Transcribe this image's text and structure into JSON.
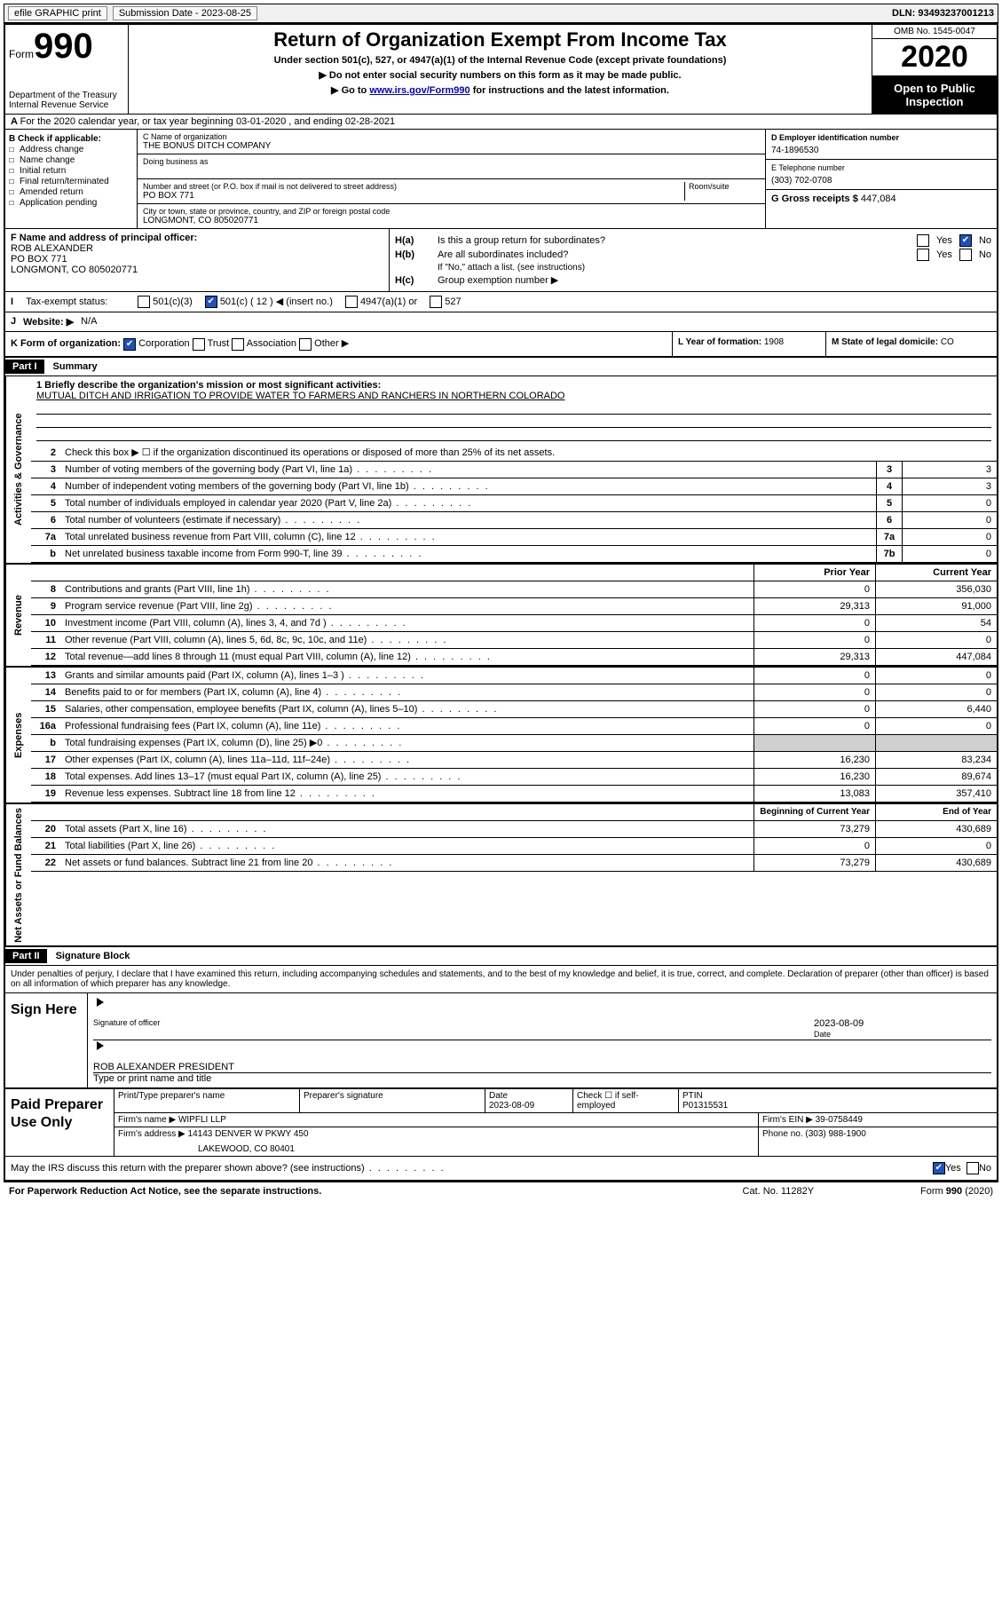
{
  "topbar": {
    "efile": "efile GRAPHIC print",
    "sub_label": "Submission Date - ",
    "sub_date": "2023-08-25",
    "dln_label": "DLN: ",
    "dln": "93493237001213"
  },
  "header": {
    "form_word": "Form",
    "form_num": "990",
    "dept": "Department of the Treasury\nInternal Revenue Service",
    "title": "Return of Organization Exempt From Income Tax",
    "sub": "Under section 501(c), 527, or 4947(a)(1) of the Internal Revenue Code (except private foundations)",
    "note1": "Do not enter social security numbers on this form as it may be made public.",
    "note2_pre": "Go to ",
    "note2_link": "www.irs.gov/Form990",
    "note2_post": " for instructions and the latest information.",
    "omb": "OMB No. 1545-0047",
    "year": "2020",
    "open": "Open to Public Inspection"
  },
  "lineA": "For the 2020 calendar year, or tax year beginning 03-01-2020   , and ending 02-28-2021",
  "colB": {
    "title": "B Check if applicable:",
    "items": [
      "Address change",
      "Name change",
      "Initial return",
      "Final return/terminated",
      "Amended return",
      "Application pending"
    ]
  },
  "colC": {
    "name_lbl": "C Name of organization",
    "name": "THE BONUS DITCH COMPANY",
    "dba_lbl": "Doing business as",
    "addr_lbl": "Number and street (or P.O. box if mail is not delivered to street address)",
    "room_lbl": "Room/suite",
    "addr": "PO BOX 771",
    "city_lbl": "City or town, state or province, country, and ZIP or foreign postal code",
    "city": "LONGMONT, CO  805020771"
  },
  "colD": {
    "d_lbl": "D Employer identification number",
    "ein": "74-1896530",
    "e_lbl": "E Telephone number",
    "phone": "(303) 702-0708",
    "g_lbl": "G Gross receipts $ ",
    "g_val": "447,084"
  },
  "fh": {
    "f_lbl": "F Name and address of principal officer:",
    "f_name": "ROB ALEXANDER",
    "f_addr1": "PO BOX 771",
    "f_addr2": "LONGMONT, CO  805020771",
    "ha": "Is this a group return for subordinates?",
    "hb": "Are all subordinates included?",
    "hb_note": "If \"No,\" attach a list. (see instructions)",
    "hc": "Group exemption number ▶",
    "ha_lbl": "H(a)",
    "hb_lbl": "H(b)",
    "hc_lbl": "H(c)",
    "yes": "Yes",
    "no": "No"
  },
  "status": {
    "i": "I",
    "label": "Tax-exempt status:",
    "opts": [
      "501(c)(3)",
      "501(c) ( 12 ) ◀ (insert no.)",
      "4947(a)(1) or",
      "527"
    ]
  },
  "web": {
    "j": "J",
    "label": "Website: ▶",
    "val": "N/A"
  },
  "klm": {
    "k": "K Form of organization:",
    "k_opts": [
      "Corporation",
      "Trust",
      "Association",
      "Other ▶"
    ],
    "l_lbl": "L Year of formation: ",
    "l_val": "1908",
    "m_lbl": "M State of legal domicile: ",
    "m_val": "CO"
  },
  "part1": {
    "label": "Part I",
    "title": "Summary"
  },
  "mission": {
    "q": "1  Briefly describe the organization's mission or most significant activities:",
    "text": "MUTUAL DITCH AND IRRIGATION TO PROVIDE WATER TO FARMERS AND RANCHERS IN NORTHERN COLORADO"
  },
  "gov": {
    "l2": "Check this box ▶ ☐  if the organization discontinued its operations or disposed of more than 25% of its net assets.",
    "rows": [
      {
        "n": "3",
        "d": "Number of voting members of the governing body (Part VI, line 1a)",
        "b": "3",
        "v": "3"
      },
      {
        "n": "4",
        "d": "Number of independent voting members of the governing body (Part VI, line 1b)",
        "b": "4",
        "v": "3"
      },
      {
        "n": "5",
        "d": "Total number of individuals employed in calendar year 2020 (Part V, line 2a)",
        "b": "5",
        "v": "0"
      },
      {
        "n": "6",
        "d": "Total number of volunteers (estimate if necessary)",
        "b": "6",
        "v": "0"
      },
      {
        "n": "7a",
        "d": "Total unrelated business revenue from Part VIII, column (C), line 12",
        "b": "7a",
        "v": "0"
      },
      {
        "n": "b",
        "d": "Net unrelated business taxable income from Form 990-T, line 39",
        "b": "7b",
        "v": "0"
      }
    ]
  },
  "rev_hdr": {
    "prior": "Prior Year",
    "current": "Current Year"
  },
  "rev": [
    {
      "n": "8",
      "d": "Contributions and grants (Part VIII, line 1h)",
      "p": "0",
      "c": "356,030"
    },
    {
      "n": "9",
      "d": "Program service revenue (Part VIII, line 2g)",
      "p": "29,313",
      "c": "91,000"
    },
    {
      "n": "10",
      "d": "Investment income (Part VIII, column (A), lines 3, 4, and 7d )",
      "p": "0",
      "c": "54"
    },
    {
      "n": "11",
      "d": "Other revenue (Part VIII, column (A), lines 5, 6d, 8c, 9c, 10c, and 11e)",
      "p": "0",
      "c": "0"
    },
    {
      "n": "12",
      "d": "Total revenue—add lines 8 through 11 (must equal Part VIII, column (A), line 12)",
      "p": "29,313",
      "c": "447,084"
    }
  ],
  "exp": [
    {
      "n": "13",
      "d": "Grants and similar amounts paid (Part IX, column (A), lines 1–3 )",
      "p": "0",
      "c": "0"
    },
    {
      "n": "14",
      "d": "Benefits paid to or for members (Part IX, column (A), line 4)",
      "p": "0",
      "c": "0"
    },
    {
      "n": "15",
      "d": "Salaries, other compensation, employee benefits (Part IX, column (A), lines 5–10)",
      "p": "0",
      "c": "6,440"
    },
    {
      "n": "16a",
      "d": "Professional fundraising fees (Part IX, column (A), line 11e)",
      "p": "0",
      "c": "0"
    },
    {
      "n": "b",
      "d": "Total fundraising expenses (Part IX, column (D), line 25) ▶0",
      "p": "",
      "c": "",
      "shade": true
    },
    {
      "n": "17",
      "d": "Other expenses (Part IX, column (A), lines 11a–11d, 11f–24e)",
      "p": "16,230",
      "c": "83,234"
    },
    {
      "n": "18",
      "d": "Total expenses. Add lines 13–17 (must equal Part IX, column (A), line 25)",
      "p": "16,230",
      "c": "89,674"
    },
    {
      "n": "19",
      "d": "Revenue less expenses. Subtract line 18 from line 12",
      "p": "13,083",
      "c": "357,410"
    }
  ],
  "na_hdr": {
    "begin": "Beginning of Current Year",
    "end": "End of Year"
  },
  "na": [
    {
      "n": "20",
      "d": "Total assets (Part X, line 16)",
      "p": "73,279",
      "c": "430,689"
    },
    {
      "n": "21",
      "d": "Total liabilities (Part X, line 26)",
      "p": "0",
      "c": "0"
    },
    {
      "n": "22",
      "d": "Net assets or fund balances. Subtract line 21 from line 20",
      "p": "73,279",
      "c": "430,689"
    }
  ],
  "part2": {
    "label": "Part II",
    "title": "Signature Block"
  },
  "sig": {
    "decl": "Under penalties of perjury, I declare that I have examined this return, including accompanying schedules and statements, and to the best of my knowledge and belief, it is true, correct, and complete. Declaration of preparer (other than officer) is based on all information of which preparer has any knowledge.",
    "sign_here": "Sign Here",
    "sig_lbl": "Signature of officer",
    "date_lbl": "Date",
    "date": "2023-08-09",
    "name": "ROB ALEXANDER PRESIDENT",
    "name_lbl": "Type or print name and title"
  },
  "prep": {
    "title": "Paid Preparer Use Only",
    "h1": "Print/Type preparer's name",
    "h2": "Preparer's signature",
    "h3": "Date",
    "h3v": "2023-08-09",
    "h4": "Check ☐ if self-employed",
    "h5": "PTIN",
    "h5v": "P01315531",
    "firm_lbl": "Firm's name    ▶ ",
    "firm": "WIPFLI LLP",
    "ein_lbl": "Firm's EIN ▶ ",
    "ein": "39-0758449",
    "addr_lbl": "Firm's address ▶ ",
    "addr1": "14143 DENVER W PKWY 450",
    "addr2": "LAKEWOOD, CO  80401",
    "phone_lbl": "Phone no. ",
    "phone": "(303) 988-1900"
  },
  "discuss": {
    "q": "May the IRS discuss this return with the preparer shown above? (see instructions)",
    "yes": "Yes",
    "no": "No"
  },
  "footer": {
    "left": "For Paperwork Reduction Act Notice, see the separate instructions.",
    "mid": "Cat. No. 11282Y",
    "right": "Form 990 (2020)"
  },
  "side_labels": {
    "gov": "Activities & Governance",
    "rev": "Revenue",
    "exp": "Expenses",
    "na": "Net Assets or Fund Balances"
  }
}
